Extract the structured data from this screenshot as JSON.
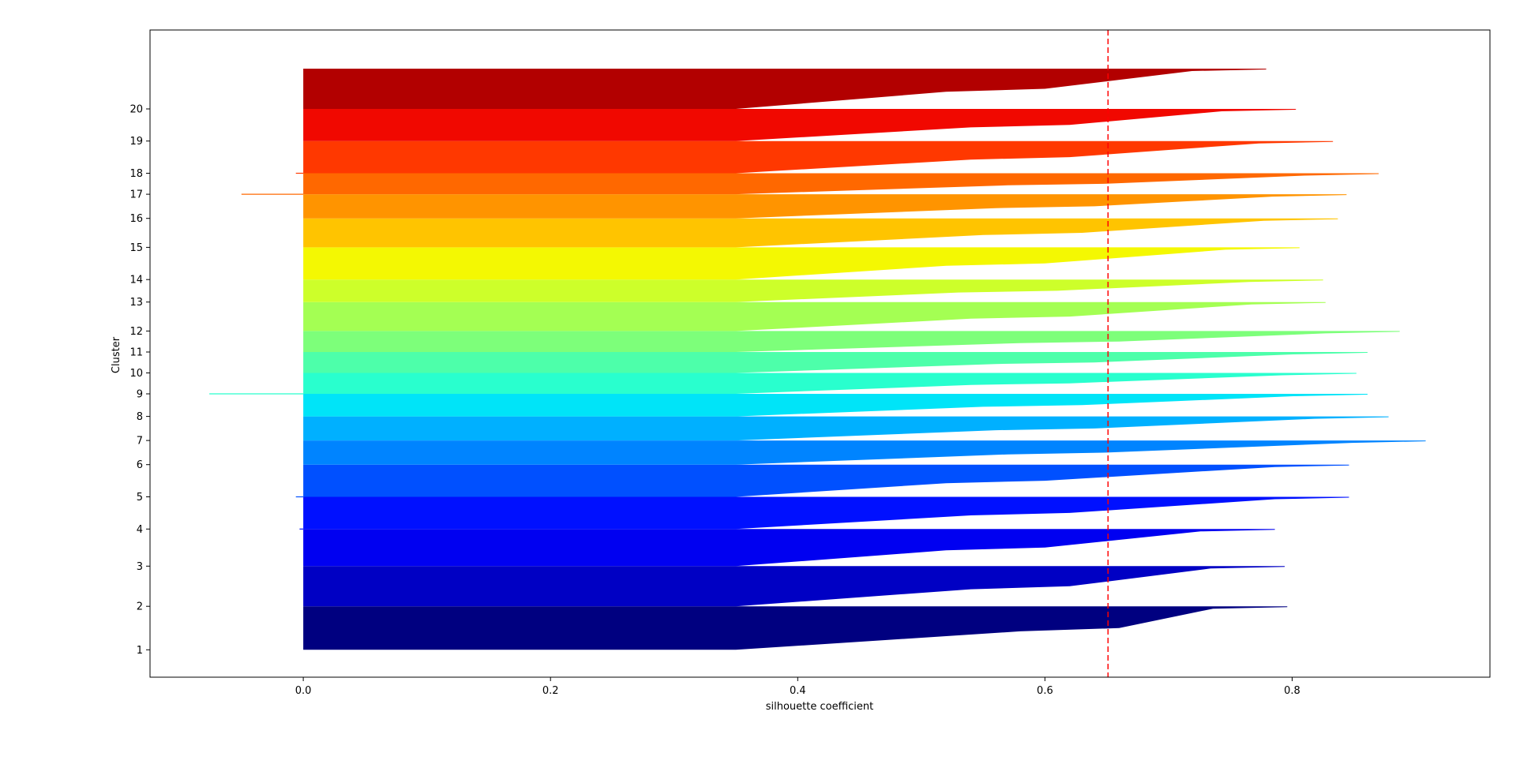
{
  "chart_data": {
    "type": "silhouette",
    "xlabel": "silhouette coefficient",
    "ylabel": "Cluster",
    "xlim": [
      -0.124,
      0.96
    ],
    "xticks": [
      0.0,
      0.2,
      0.4,
      0.6,
      0.8
    ],
    "xtick_labels": [
      "0.0",
      "0.2",
      "0.4",
      "0.6",
      "0.8"
    ],
    "ylim": [
      -34,
      770
    ],
    "average_silhouette": 0.651,
    "average_line_color": "#ff0000",
    "clusters": [
      {
        "label": "1",
        "y_start": 0,
        "y_end": 54,
        "max": 0.796,
        "median": 0.66,
        "min": 0.0,
        "color": "#000080"
      },
      {
        "label": "2",
        "y_start": 54,
        "y_end": 104,
        "max": 0.794,
        "median": 0.62,
        "min": 0.0,
        "color": "#0000c4"
      },
      {
        "label": "3",
        "y_start": 104,
        "y_end": 150,
        "max": 0.786,
        "median": 0.6,
        "min": 0.0,
        "color": "#0000f1"
      },
      {
        "label": "4",
        "y_start": 150,
        "y_end": 190,
        "max": 0.846,
        "median": 0.62,
        "min": -0.003,
        "color": "#0010ff"
      },
      {
        "label": "5",
        "y_start": 190,
        "y_end": 230,
        "max": 0.846,
        "median": 0.6,
        "min": -0.006,
        "color": "#0050ff"
      },
      {
        "label": "6",
        "y_start": 230,
        "y_end": 260,
        "max": 0.908,
        "median": 0.65,
        "min": 0.0,
        "color": "#0084ff"
      },
      {
        "label": "7",
        "y_start": 260,
        "y_end": 290,
        "max": 0.878,
        "median": 0.64,
        "min": 0.0,
        "color": "#00b0ff"
      },
      {
        "label": "8",
        "y_start": 290,
        "y_end": 318,
        "max": 0.861,
        "median": 0.63,
        "min": 0.0,
        "color": "#00e4f8"
      },
      {
        "label": "9",
        "y_start": 318,
        "y_end": 344,
        "max": 0.852,
        "median": 0.62,
        "min": -0.076,
        "color": "#29ffce"
      },
      {
        "label": "10",
        "y_start": 344,
        "y_end": 370,
        "max": 0.861,
        "median": 0.64,
        "min": 0.0,
        "color": "#4dffaa"
      },
      {
        "label": "11",
        "y_start": 370,
        "y_end": 396,
        "max": 0.887,
        "median": 0.66,
        "min": 0.0,
        "color": "#7dff7a"
      },
      {
        "label": "12",
        "y_start": 396,
        "y_end": 432,
        "max": 0.827,
        "median": 0.62,
        "min": 0.0,
        "color": "#a4ff53"
      },
      {
        "label": "13",
        "y_start": 432,
        "y_end": 460,
        "max": 0.825,
        "median": 0.61,
        "min": 0.0,
        "color": "#cdff2a"
      },
      {
        "label": "14",
        "y_start": 460,
        "y_end": 500,
        "max": 0.806,
        "median": 0.6,
        "min": 0.0,
        "color": "#f4f802"
      },
      {
        "label": "15",
        "y_start": 500,
        "y_end": 536,
        "max": 0.837,
        "median": 0.63,
        "min": 0.0,
        "color": "#ffc400"
      },
      {
        "label": "16",
        "y_start": 536,
        "y_end": 566,
        "max": 0.844,
        "median": 0.64,
        "min": 0.0,
        "color": "#ff9400"
      },
      {
        "label": "17",
        "y_start": 566,
        "y_end": 592,
        "max": 0.87,
        "median": 0.65,
        "min": -0.05,
        "color": "#ff6800"
      },
      {
        "label": "18",
        "y_start": 592,
        "y_end": 632,
        "max": 0.833,
        "median": 0.62,
        "min": -0.006,
        "color": "#ff3800"
      },
      {
        "label": "19",
        "y_start": 632,
        "y_end": 672,
        "max": 0.803,
        "median": 0.62,
        "min": 0.0,
        "color": "#f10800"
      },
      {
        "label": "20",
        "y_start": 672,
        "y_end": 722,
        "max": 0.779,
        "median": 0.6,
        "min": 0.0,
        "color": "#b20000"
      }
    ]
  }
}
